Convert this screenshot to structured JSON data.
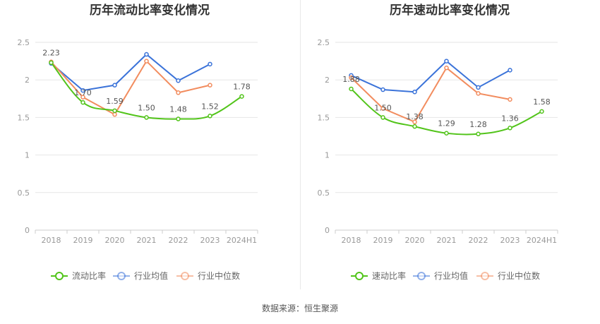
{
  "chart_data": [
    {
      "type": "line",
      "title": "历年流动比率变化情况",
      "categories": [
        "2018",
        "2019",
        "2020",
        "2021",
        "2022",
        "2023",
        "2024H1"
      ],
      "ylim": [
        0,
        2.5
      ],
      "yticks": [
        "0",
        "0.5",
        "1",
        "1.5",
        "2",
        "2.5"
      ],
      "series": [
        {
          "name": "流动比率",
          "color": "#52c41a",
          "values": [
            2.23,
            1.7,
            1.59,
            1.5,
            1.48,
            1.52,
            1.78
          ],
          "labels": [
            "2.23",
            "1.70",
            "1.59",
            "1.50",
            "1.48",
            "1.52",
            "1.78"
          ]
        },
        {
          "name": "行业均值",
          "color": "#3b73d9",
          "values": [
            2.22,
            1.86,
            1.93,
            2.34,
            1.99,
            2.21,
            null
          ]
        },
        {
          "name": "行业中位数",
          "color": "#f28c5e",
          "values": [
            2.24,
            1.77,
            1.54,
            2.25,
            1.83,
            1.93,
            null
          ]
        }
      ]
    },
    {
      "type": "line",
      "title": "历年速动比率变化情况",
      "categories": [
        "2018",
        "2019",
        "2020",
        "2021",
        "2022",
        "2023",
        "2024H1"
      ],
      "ylim": [
        0,
        2.5
      ],
      "yticks": [
        "0",
        "0.5",
        "1",
        "1.5",
        "2",
        "2.5"
      ],
      "series": [
        {
          "name": "速动比率",
          "color": "#52c41a",
          "values": [
            1.88,
            1.5,
            1.38,
            1.29,
            1.28,
            1.36,
            1.58
          ],
          "labels": [
            "1.88",
            "1.50",
            "1.38",
            "1.29",
            "1.28",
            "1.36",
            "1.58"
          ]
        },
        {
          "name": "行业均值",
          "color": "#3b73d9",
          "values": [
            2.06,
            1.87,
            1.84,
            2.25,
            1.9,
            2.13,
            null
          ]
        },
        {
          "name": "行业中位数",
          "color": "#f28c5e",
          "values": [
            2.03,
            1.62,
            1.44,
            2.16,
            1.82,
            1.74,
            null
          ]
        }
      ]
    }
  ],
  "footer": {
    "source": "数据来源：恒生聚源"
  }
}
